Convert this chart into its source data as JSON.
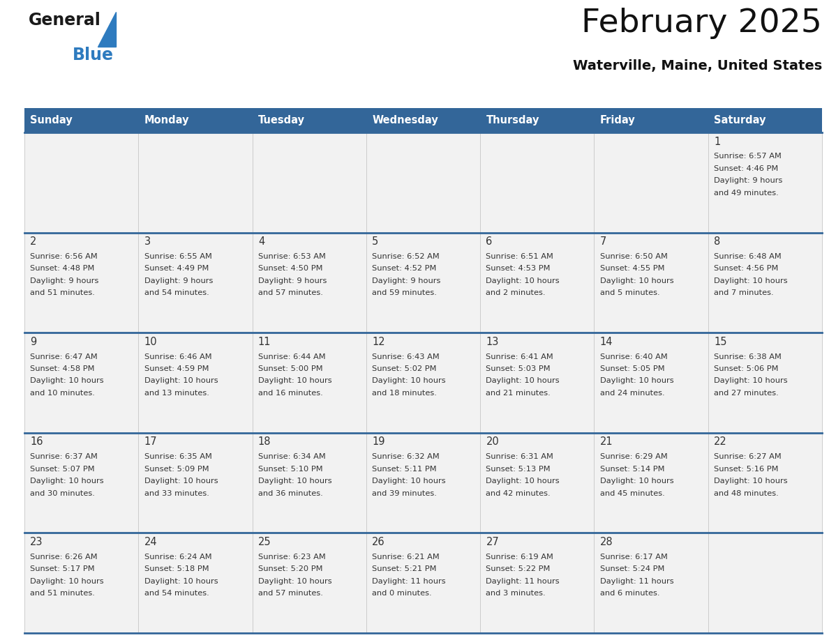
{
  "title": "February 2025",
  "subtitle": "Waterville, Maine, United States",
  "header_bg_color": "#336699",
  "header_text_color": "#ffffff",
  "cell_bg_color": "#f2f2f2",
  "day_number_color": "#333333",
  "info_text_color": "#333333",
  "row_border_color": "#336699",
  "col_border_color": "#cccccc",
  "logo_general_color": "#1a1a1a",
  "logo_blue_color": "#2e7bbf",
  "days_of_week": [
    "Sunday",
    "Monday",
    "Tuesday",
    "Wednesday",
    "Thursday",
    "Friday",
    "Saturday"
  ],
  "weeks": [
    [
      {
        "day": null,
        "info": ""
      },
      {
        "day": null,
        "info": ""
      },
      {
        "day": null,
        "info": ""
      },
      {
        "day": null,
        "info": ""
      },
      {
        "day": null,
        "info": ""
      },
      {
        "day": null,
        "info": ""
      },
      {
        "day": 1,
        "info": "Sunrise: 6:57 AM\nSunset: 4:46 PM\nDaylight: 9 hours\nand 49 minutes."
      }
    ],
    [
      {
        "day": 2,
        "info": "Sunrise: 6:56 AM\nSunset: 4:48 PM\nDaylight: 9 hours\nand 51 minutes."
      },
      {
        "day": 3,
        "info": "Sunrise: 6:55 AM\nSunset: 4:49 PM\nDaylight: 9 hours\nand 54 minutes."
      },
      {
        "day": 4,
        "info": "Sunrise: 6:53 AM\nSunset: 4:50 PM\nDaylight: 9 hours\nand 57 minutes."
      },
      {
        "day": 5,
        "info": "Sunrise: 6:52 AM\nSunset: 4:52 PM\nDaylight: 9 hours\nand 59 minutes."
      },
      {
        "day": 6,
        "info": "Sunrise: 6:51 AM\nSunset: 4:53 PM\nDaylight: 10 hours\nand 2 minutes."
      },
      {
        "day": 7,
        "info": "Sunrise: 6:50 AM\nSunset: 4:55 PM\nDaylight: 10 hours\nand 5 minutes."
      },
      {
        "day": 8,
        "info": "Sunrise: 6:48 AM\nSunset: 4:56 PM\nDaylight: 10 hours\nand 7 minutes."
      }
    ],
    [
      {
        "day": 9,
        "info": "Sunrise: 6:47 AM\nSunset: 4:58 PM\nDaylight: 10 hours\nand 10 minutes."
      },
      {
        "day": 10,
        "info": "Sunrise: 6:46 AM\nSunset: 4:59 PM\nDaylight: 10 hours\nand 13 minutes."
      },
      {
        "day": 11,
        "info": "Sunrise: 6:44 AM\nSunset: 5:00 PM\nDaylight: 10 hours\nand 16 minutes."
      },
      {
        "day": 12,
        "info": "Sunrise: 6:43 AM\nSunset: 5:02 PM\nDaylight: 10 hours\nand 18 minutes."
      },
      {
        "day": 13,
        "info": "Sunrise: 6:41 AM\nSunset: 5:03 PM\nDaylight: 10 hours\nand 21 minutes."
      },
      {
        "day": 14,
        "info": "Sunrise: 6:40 AM\nSunset: 5:05 PM\nDaylight: 10 hours\nand 24 minutes."
      },
      {
        "day": 15,
        "info": "Sunrise: 6:38 AM\nSunset: 5:06 PM\nDaylight: 10 hours\nand 27 minutes."
      }
    ],
    [
      {
        "day": 16,
        "info": "Sunrise: 6:37 AM\nSunset: 5:07 PM\nDaylight: 10 hours\nand 30 minutes."
      },
      {
        "day": 17,
        "info": "Sunrise: 6:35 AM\nSunset: 5:09 PM\nDaylight: 10 hours\nand 33 minutes."
      },
      {
        "day": 18,
        "info": "Sunrise: 6:34 AM\nSunset: 5:10 PM\nDaylight: 10 hours\nand 36 minutes."
      },
      {
        "day": 19,
        "info": "Sunrise: 6:32 AM\nSunset: 5:11 PM\nDaylight: 10 hours\nand 39 minutes."
      },
      {
        "day": 20,
        "info": "Sunrise: 6:31 AM\nSunset: 5:13 PM\nDaylight: 10 hours\nand 42 minutes."
      },
      {
        "day": 21,
        "info": "Sunrise: 6:29 AM\nSunset: 5:14 PM\nDaylight: 10 hours\nand 45 minutes."
      },
      {
        "day": 22,
        "info": "Sunrise: 6:27 AM\nSunset: 5:16 PM\nDaylight: 10 hours\nand 48 minutes."
      }
    ],
    [
      {
        "day": 23,
        "info": "Sunrise: 6:26 AM\nSunset: 5:17 PM\nDaylight: 10 hours\nand 51 minutes."
      },
      {
        "day": 24,
        "info": "Sunrise: 6:24 AM\nSunset: 5:18 PM\nDaylight: 10 hours\nand 54 minutes."
      },
      {
        "day": 25,
        "info": "Sunrise: 6:23 AM\nSunset: 5:20 PM\nDaylight: 10 hours\nand 57 minutes."
      },
      {
        "day": 26,
        "info": "Sunrise: 6:21 AM\nSunset: 5:21 PM\nDaylight: 11 hours\nand 0 minutes."
      },
      {
        "day": 27,
        "info": "Sunrise: 6:19 AM\nSunset: 5:22 PM\nDaylight: 11 hours\nand 3 minutes."
      },
      {
        "day": 28,
        "info": "Sunrise: 6:17 AM\nSunset: 5:24 PM\nDaylight: 11 hours\nand 6 minutes."
      },
      {
        "day": null,
        "info": ""
      }
    ]
  ],
  "fig_width": 11.88,
  "fig_height": 9.18,
  "dpi": 100
}
